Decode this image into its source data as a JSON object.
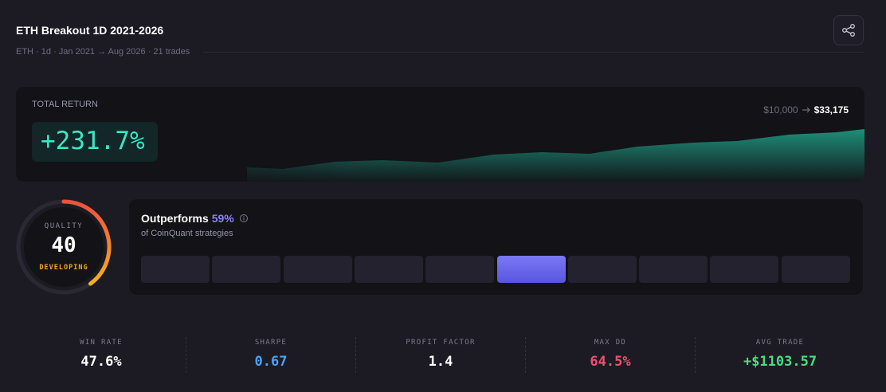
{
  "header": {
    "title": "ETH Breakout 1D 2021-2026",
    "subtitle": "ETH · 1d · Jan 2021 → Aug 2026 · 21 trades"
  },
  "total_return": {
    "label": "TOTAL RETURN",
    "value": "+231.7%",
    "start": "$10,000",
    "end": "$33,175"
  },
  "quality": {
    "label": "QUALITY",
    "score": "40",
    "grade": "DEVELOPING"
  },
  "outperforms": {
    "title": "Outperforms",
    "percent": "59%",
    "caption": "of CoinQuant strategies"
  },
  "stats": [
    {
      "label": "WIN RATE",
      "value": "47.6%"
    },
    {
      "label": "SHARPE",
      "value": "0.67"
    },
    {
      "label": "PROFIT FACTOR",
      "value": "1.4"
    },
    {
      "label": "MAX DD",
      "value": "64.5%"
    },
    {
      "label": "AVG TRADE",
      "value": "+$1103.57"
    }
  ]
}
